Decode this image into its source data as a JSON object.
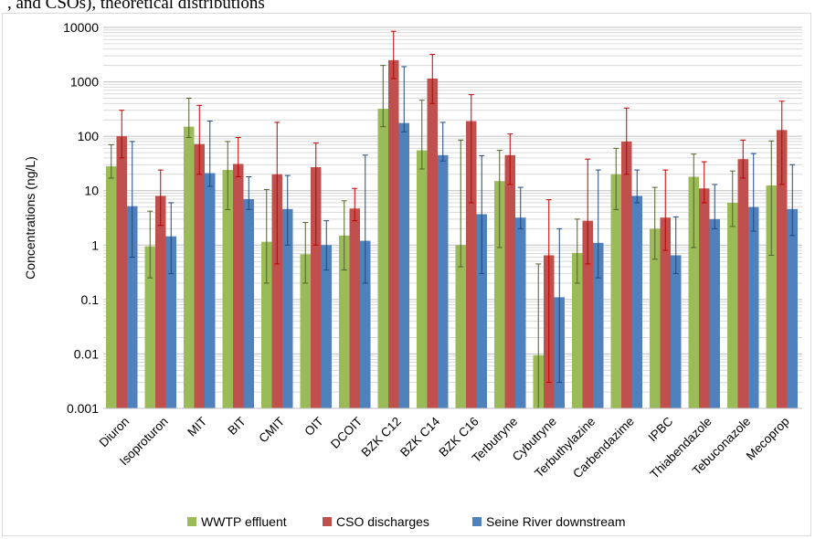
{
  "caption": ", and CSOs), theoretical distributions",
  "colors": {
    "wwtp": "#9bbb59",
    "cso": "#c0504d",
    "seine": "#4f81bd",
    "err_wwtp": "#4f6228",
    "err_cso": "#c00000",
    "err_seine": "#1f497d"
  },
  "chart_data": {
    "type": "bar",
    "yscale": "log",
    "ylabel": "Concentrations (ng/L)",
    "ylim": [
      0.001,
      10000
    ],
    "yticks": [
      "0.001",
      "0.01",
      "0.1",
      "1",
      "10",
      "100",
      "1000",
      "10000"
    ],
    "grid": true,
    "legend_position": "bottom",
    "categories": [
      "Diuron",
      "Isoproturon",
      "MIT",
      "BIT",
      "CMIT",
      "OIT",
      "DCOIT",
      "BZK C12",
      "BZK C14",
      "BZK C16",
      "Terbutryne",
      "Cybutryne",
      "Terbuthylazine",
      "Carbendazime",
      "IPBC",
      "Thiabendazole",
      "Tebuconazole",
      "Mecoprop"
    ],
    "series": [
      {
        "name": "WWTP effluent",
        "values": [
          28,
          0.95,
          150,
          24,
          1.15,
          0.68,
          1.5,
          320,
          55,
          1.0,
          15,
          0.0095,
          0.72,
          20,
          2.0,
          18,
          6.0,
          12.5
        ],
        "err_low": [
          17,
          0.25,
          95,
          4.5,
          0.2,
          0.2,
          0.35,
          150,
          25,
          0.4,
          0.9,
          0.001,
          0.2,
          4.5,
          0.55,
          0.9,
          2.2,
          0.65
        ],
        "err_high": [
          70,
          4.2,
          500,
          80,
          10.5,
          2.6,
          6.5,
          2000,
          460,
          85,
          55,
          0.45,
          3.0,
          60,
          11.5,
          47,
          23,
          82
        ]
      },
      {
        "name": "CSO discharges",
        "values": [
          100,
          8.0,
          72,
          31,
          20,
          27,
          4.7,
          2500,
          1150,
          190,
          45,
          0.65,
          2.8,
          80,
          3.2,
          11,
          38,
          130
        ],
        "err_low": [
          40,
          2.3,
          20,
          18,
          0.45,
          1.0,
          2.8,
          1150,
          400,
          6.0,
          13,
          0.003,
          0.45,
          20,
          0.8,
          6.0,
          17,
          13
        ],
        "err_high": [
          300,
          24,
          370,
          95,
          180,
          75,
          11,
          8500,
          3200,
          580,
          110,
          6.8,
          38,
          330,
          24,
          34,
          85,
          440
        ]
      },
      {
        "name": "Seine River downstream",
        "values": [
          5.2,
          1.45,
          21,
          7.0,
          4.6,
          1.0,
          1.2,
          175,
          45,
          3.7,
          3.2,
          0.11,
          1.1,
          8.0,
          0.65,
          3.0,
          5.0,
          4.6
        ],
        "err_low": [
          0.6,
          0.3,
          12,
          4.5,
          1.0,
          0.35,
          0.2,
          120,
          35,
          0.3,
          2.0,
          0.003,
          0.25,
          6.0,
          0.3,
          2.0,
          1.8,
          1.5
        ],
        "err_high": [
          80,
          6.0,
          190,
          18,
          19,
          2.8,
          45,
          1900,
          180,
          44,
          11.5,
          2.0,
          24,
          24,
          3.3,
          13,
          48,
          30
        ]
      }
    ]
  }
}
